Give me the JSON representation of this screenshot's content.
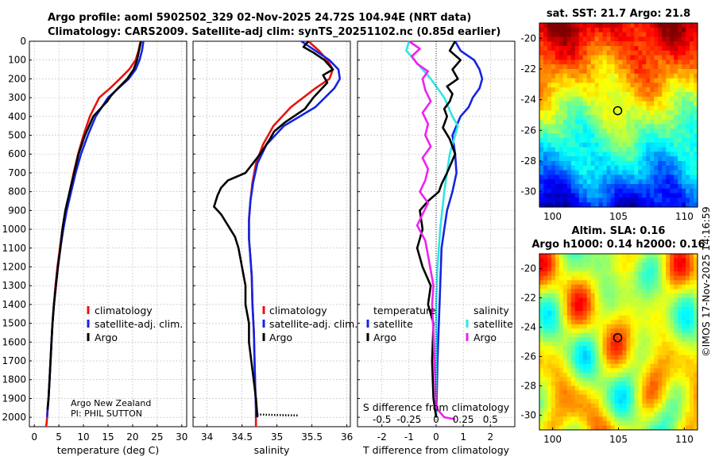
{
  "title": {
    "line1": "Argo profile: aoml 5902502_329 02-Nov-2025 24.72S 104.94E (NRT data)",
    "line2": "Climatology: CARS2009. Satellite-adj clim: synTS_20251102.nc (0.85d earlier)"
  },
  "side_stamp": "©IMOS 17-Nov-2025 14:16:59",
  "colors": {
    "red": "#e8140c",
    "blue": "#1425e0",
    "black": "#000000",
    "cyan": "#2ee6e6",
    "magenta": "#ee22ee"
  },
  "chart_data": [
    {
      "id": "temperature",
      "type": "line",
      "xlabel": "temperature (deg C)",
      "ylabel": "",
      "xlim": [
        -1,
        31
      ],
      "ylim": [
        2050,
        0
      ],
      "xticks": [
        0,
        5,
        10,
        15,
        20,
        25,
        30
      ],
      "yticks": [
        0,
        100,
        200,
        300,
        400,
        500,
        600,
        700,
        800,
        900,
        1000,
        1100,
        1200,
        1300,
        1400,
        1500,
        1600,
        1700,
        1800,
        1900,
        2000
      ],
      "legend": [
        "climatology",
        "satellite-adj. clim.",
        "Argo"
      ],
      "annotation": [
        "Argo New Zealand",
        "PI: PHIL SUTTON"
      ],
      "series": [
        {
          "name": "climatology",
          "color": "red",
          "x": [
            21.6,
            21.2,
            20.6,
            19.3,
            17.4,
            15.4,
            13.2,
            11.3,
            10.0,
            8.9,
            8.0,
            7.2,
            6.4,
            5.7,
            5.2,
            4.7,
            4.3,
            4.0,
            3.7,
            3.5,
            3.3,
            3.1,
            2.9,
            2.7,
            2.6,
            2.5,
            2.4
          ],
          "y": [
            0,
            50,
            100,
            150,
            200,
            250,
            300,
            400,
            500,
            600,
            700,
            800,
            900,
            1000,
            1100,
            1200,
            1300,
            1400,
            1500,
            1600,
            1700,
            1800,
            1900,
            1950,
            2000,
            2030,
            2050
          ]
        },
        {
          "name": "satellite-adj. clim.",
          "color": "blue",
          "x": [
            22.2,
            21.9,
            21.4,
            20.6,
            19.2,
            17.1,
            15.0,
            12.5,
            10.9,
            9.5,
            8.4,
            7.5,
            6.6,
            5.9,
            5.3,
            4.8,
            4.4,
            4.0,
            3.7,
            3.5,
            3.3,
            3.1,
            2.9,
            2.7,
            2.6
          ],
          "y": [
            0,
            50,
            100,
            150,
            200,
            250,
            300,
            400,
            500,
            600,
            700,
            800,
            900,
            1000,
            1100,
            1200,
            1300,
            1400,
            1500,
            1600,
            1700,
            1800,
            1900,
            1960,
            2000
          ]
        },
        {
          "name": "Argo",
          "color": "black",
          "x": [
            21.7,
            21.3,
            20.9,
            20.2,
            18.9,
            17.0,
            15.6,
            14.8,
            12.0,
            10.3,
            9.0,
            8.1,
            7.2,
            6.3,
            5.7,
            5.3,
            4.8,
            4.4,
            4.0,
            3.7,
            3.5,
            3.3,
            3.1,
            2.9,
            2.7
          ],
          "y": [
            0,
            50,
            100,
            150,
            200,
            250,
            290,
            320,
            400,
            500,
            600,
            700,
            800,
            900,
            1000,
            1100,
            1200,
            1300,
            1400,
            1500,
            1600,
            1700,
            1800,
            1900,
            1960
          ]
        }
      ]
    },
    {
      "id": "salinity",
      "type": "line",
      "xlabel": "salinity",
      "ylabel": "",
      "xlim": [
        33.8,
        36.05
      ],
      "ylim": [
        2050,
        0
      ],
      "xticks": [
        34,
        34.5,
        35,
        35.5,
        36
      ],
      "legend": [
        "climatology",
        "satellite-adj. clim.",
        "Argo"
      ],
      "series": [
        {
          "name": "climatology",
          "color": "red",
          "x": [
            35.45,
            35.6,
            35.72,
            35.8,
            35.75,
            35.55,
            35.2,
            34.95,
            34.8,
            34.7,
            34.65,
            34.62,
            34.6,
            34.6,
            34.62,
            34.64,
            34.65,
            34.67,
            34.68,
            34.69,
            34.7,
            34.7,
            34.7
          ],
          "y": [
            0,
            50,
            100,
            150,
            200,
            250,
            350,
            450,
            550,
            650,
            750,
            850,
            950,
            1050,
            1150,
            1250,
            1400,
            1550,
            1700,
            1850,
            1950,
            2000,
            2050
          ]
        },
        {
          "name": "satellite-adj. clim.",
          "color": "blue",
          "x": [
            35.35,
            35.55,
            35.75,
            35.88,
            35.9,
            35.82,
            35.55,
            35.1,
            34.85,
            34.72,
            34.66,
            34.62,
            34.6,
            34.6,
            34.62,
            34.64,
            34.65,
            34.67,
            34.68,
            34.69,
            34.7,
            34.7
          ],
          "y": [
            0,
            50,
            100,
            150,
            200,
            250,
            350,
            450,
            550,
            650,
            750,
            850,
            950,
            1050,
            1150,
            1250,
            1400,
            1550,
            1700,
            1850,
            1950,
            2000
          ]
        },
        {
          "name": "Argo",
          "color": "black",
          "x": [
            35.45,
            35.38,
            35.52,
            35.68,
            35.8,
            35.66,
            35.72,
            35.52,
            35.4,
            35.12,
            34.96,
            34.9,
            34.76,
            34.55,
            34.3,
            34.2,
            34.15,
            34.1,
            34.2,
            34.3,
            34.4,
            34.45,
            34.5,
            34.55,
            34.55,
            34.6,
            34.6,
            34.65,
            34.7,
            34.72
          ],
          "y": [
            0,
            30,
            60,
            100,
            150,
            180,
            220,
            300,
            360,
            430,
            480,
            520,
            600,
            700,
            740,
            780,
            820,
            880,
            920,
            980,
            1040,
            1100,
            1200,
            1300,
            1400,
            1500,
            1600,
            1750,
            1900,
            2000
          ]
        },
        {
          "name": "Argo deep tail",
          "color": "black",
          "dotted": true,
          "x": [
            34.72,
            35.0,
            35.3
          ],
          "y": [
            1985,
            1988,
            1990
          ]
        }
      ]
    },
    {
      "id": "difference",
      "type": "line",
      "xlabel": "T difference from climatology",
      "xlabel2": "S difference from climatology",
      "xlim": [
        -2.9,
        2.9
      ],
      "ylim": [
        2050,
        0
      ],
      "xticks": [
        -2,
        -1,
        0,
        1,
        2
      ],
      "xticks_top": [
        "-0.5",
        "-0.25",
        "0",
        "0.25",
        "0.5"
      ],
      "xticks_top_at": [
        -2,
        -1,
        0,
        1,
        2
      ],
      "legend_left_title": "temperature",
      "legend_right_title": "salinity",
      "legend_left": [
        "satellite",
        "Argo"
      ],
      "legend_right": [
        "satellite",
        "Argo"
      ],
      "series": [
        {
          "name": "T satellite",
          "color": "blue",
          "x": [
            0.7,
            0.9,
            1.4,
            1.6,
            1.7,
            1.6,
            1.35,
            1.2,
            0.9,
            0.6,
            0.7,
            0.75,
            0.6,
            0.4,
            0.3,
            0.2,
            0.15,
            0.1,
            0.05,
            0.02,
            0.0
          ],
          "y": [
            0,
            50,
            100,
            150,
            200,
            250,
            300,
            350,
            400,
            500,
            600,
            700,
            800,
            900,
            1000,
            1100,
            1300,
            1500,
            1700,
            1900,
            2000
          ]
        },
        {
          "name": "S satellite",
          "color": "cyan",
          "x": [
            -1.0,
            -1.1,
            -0.8,
            -0.2,
            0.3,
            0.6,
            0.8,
            0.7,
            0.5,
            0.3,
            0.15,
            0.05,
            0.0,
            0.0,
            0.0
          ],
          "y": [
            0,
            50,
            100,
            200,
            300,
            400,
            450,
            500,
            600,
            800,
            1000,
            1200,
            1400,
            1700,
            2000
          ]
        },
        {
          "name": "T Argo",
          "color": "black",
          "x": [
            0.7,
            0.5,
            0.9,
            0.6,
            0.8,
            0.4,
            0.6,
            0.5,
            0.3,
            0.4,
            0.25,
            0.5,
            0.7,
            0.4,
            0.2,
            0.1,
            -0.3,
            -0.6,
            -0.5,
            -0.7,
            -0.5,
            -0.2,
            -0.3,
            -0.1,
            -0.15,
            -0.1,
            0.0
          ],
          "y": [
            0,
            50,
            100,
            150,
            200,
            240,
            280,
            320,
            360,
            400,
            460,
            520,
            600,
            700,
            760,
            800,
            850,
            900,
            1000,
            1100,
            1200,
            1300,
            1400,
            1500,
            1700,
            1900,
            2000
          ]
        },
        {
          "name": "S Argo",
          "color": "magenta",
          "x": [
            -1.0,
            -0.6,
            -0.9,
            -0.7,
            -0.3,
            -0.5,
            -0.4,
            -0.2,
            -0.5,
            -0.3,
            -0.4,
            -0.2,
            -0.5,
            -0.3,
            -0.4,
            -0.6,
            -0.3,
            -0.5,
            -0.7,
            -0.4,
            -0.3,
            -0.2,
            -0.1,
            -0.15,
            -0.1,
            -0.05,
            0.0,
            0.3,
            0.7
          ],
          "y": [
            0,
            40,
            80,
            120,
            160,
            200,
            260,
            320,
            380,
            440,
            500,
            560,
            620,
            680,
            740,
            800,
            860,
            920,
            980,
            1060,
            1140,
            1220,
            1300,
            1400,
            1550,
            1750,
            1950,
            2000,
            2010
          ]
        }
      ]
    },
    {
      "id": "sst_map",
      "type": "heatmap",
      "title": "sat. SST: 21.7 Argo: 21.8",
      "xlim": [
        99,
        111
      ],
      "ylim": [
        -31,
        -19
      ],
      "xticks": [
        100,
        105,
        110
      ],
      "yticks": [
        -20,
        -22,
        -24,
        -26,
        -28,
        -30
      ],
      "marker": {
        "lon": 104.94,
        "lat": -24.72
      }
    },
    {
      "id": "sla_map",
      "type": "heatmap",
      "title": "Altim. SLA: 0.16",
      "subtitle": "Argo h1000: 0.14 h2000: 0.16",
      "xlim": [
        99,
        111
      ],
      "ylim": [
        -31,
        -19
      ],
      "xticks": [
        100,
        105,
        110
      ],
      "yticks": [
        -20,
        -22,
        -24,
        -26,
        -28,
        -30
      ],
      "marker": {
        "lon": 104.94,
        "lat": -24.72
      }
    }
  ]
}
